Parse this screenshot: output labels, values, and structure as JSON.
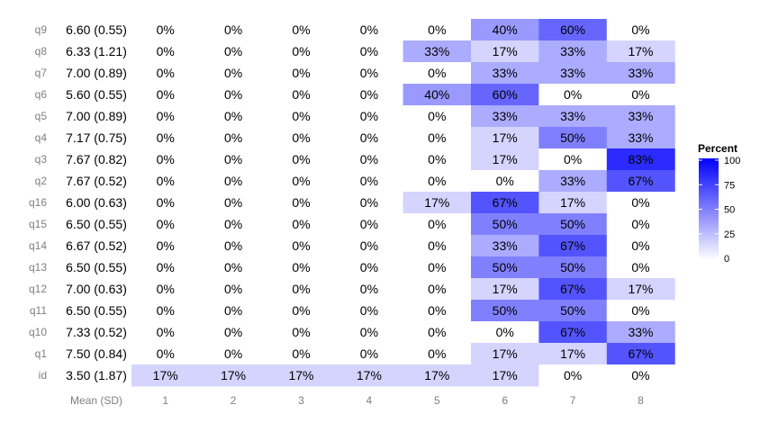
{
  "chart_data": {
    "type": "heatmap",
    "rows": [
      {
        "label": "q9",
        "mean_sd": "6.60 (0.55)",
        "percents": [
          0,
          0,
          0,
          0,
          0,
          40,
          60,
          0
        ]
      },
      {
        "label": "q8",
        "mean_sd": "6.33 (1.21)",
        "percents": [
          0,
          0,
          0,
          0,
          33,
          17,
          33,
          17
        ]
      },
      {
        "label": "q7",
        "mean_sd": "7.00 (0.89)",
        "percents": [
          0,
          0,
          0,
          0,
          0,
          33,
          33,
          33
        ]
      },
      {
        "label": "q6",
        "mean_sd": "5.60 (0.55)",
        "percents": [
          0,
          0,
          0,
          0,
          40,
          60,
          0,
          0
        ]
      },
      {
        "label": "q5",
        "mean_sd": "7.00 (0.89)",
        "percents": [
          0,
          0,
          0,
          0,
          0,
          33,
          33,
          33
        ]
      },
      {
        "label": "q4",
        "mean_sd": "7.17 (0.75)",
        "percents": [
          0,
          0,
          0,
          0,
          0,
          17,
          50,
          33
        ]
      },
      {
        "label": "q3",
        "mean_sd": "7.67 (0.82)",
        "percents": [
          0,
          0,
          0,
          0,
          0,
          17,
          0,
          83
        ]
      },
      {
        "label": "q2",
        "mean_sd": "7.67 (0.52)",
        "percents": [
          0,
          0,
          0,
          0,
          0,
          0,
          33,
          67
        ]
      },
      {
        "label": "q16",
        "mean_sd": "6.00 (0.63)",
        "percents": [
          0,
          0,
          0,
          0,
          17,
          67,
          17,
          0
        ]
      },
      {
        "label": "q15",
        "mean_sd": "6.50 (0.55)",
        "percents": [
          0,
          0,
          0,
          0,
          0,
          50,
          50,
          0
        ]
      },
      {
        "label": "q14",
        "mean_sd": "6.67 (0.52)",
        "percents": [
          0,
          0,
          0,
          0,
          0,
          33,
          67,
          0
        ]
      },
      {
        "label": "q13",
        "mean_sd": "6.50 (0.55)",
        "percents": [
          0,
          0,
          0,
          0,
          0,
          50,
          50,
          0
        ]
      },
      {
        "label": "q12",
        "mean_sd": "7.00 (0.63)",
        "percents": [
          0,
          0,
          0,
          0,
          0,
          17,
          67,
          17
        ]
      },
      {
        "label": "q11",
        "mean_sd": "6.50 (0.55)",
        "percents": [
          0,
          0,
          0,
          0,
          0,
          50,
          50,
          0
        ]
      },
      {
        "label": "q10",
        "mean_sd": "7.33 (0.52)",
        "percents": [
          0,
          0,
          0,
          0,
          0,
          0,
          67,
          33
        ]
      },
      {
        "label": "q1",
        "mean_sd": "7.50 (0.84)",
        "percents": [
          0,
          0,
          0,
          0,
          0,
          17,
          17,
          67
        ]
      },
      {
        "label": "id",
        "mean_sd": "3.50 (1.87)",
        "percents": [
          17,
          17,
          17,
          17,
          17,
          17,
          0,
          0
        ]
      }
    ],
    "mean_column_label": "Mean (SD)",
    "columns": [
      "1",
      "2",
      "3",
      "4",
      "5",
      "6",
      "7",
      "8"
    ],
    "value_suffix": "%",
    "legend": {
      "title": "Percent",
      "ticks": [
        100,
        75,
        50,
        25,
        0
      ],
      "range": [
        0,
        100
      ],
      "low_color": "#ffffff",
      "high_color": "#0000ff",
      "position": "right"
    },
    "grid": false
  }
}
